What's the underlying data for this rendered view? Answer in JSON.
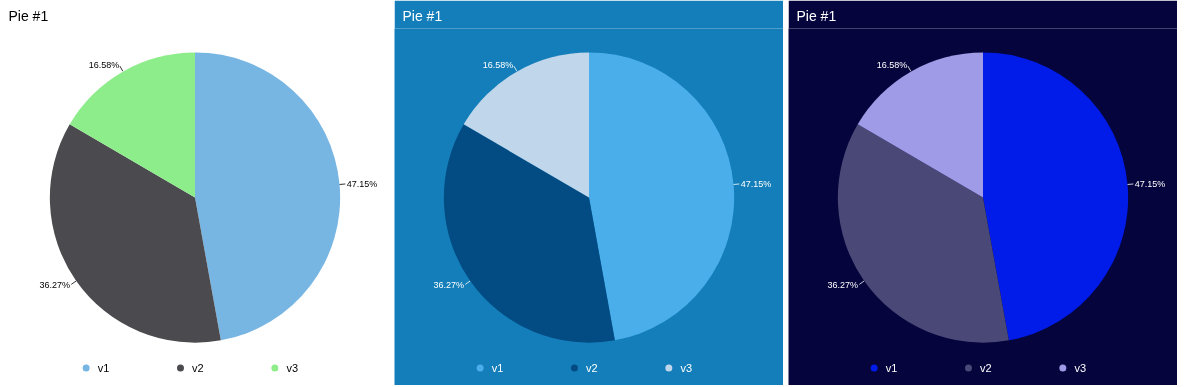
{
  "chart_data": [
    {
      "type": "pie",
      "title": "Pie #1",
      "categories": [
        "v1",
        "v2",
        "v3"
      ],
      "values": [
        47.15,
        36.27,
        16.58
      ],
      "colors": [
        "#77b5e3",
        "#4b4a4e",
        "#8ded8b"
      ],
      "value_labels": [
        "47.15%",
        "36.27%",
        "16.58%"
      ],
      "legend": "bottom"
    },
    {
      "type": "pie",
      "title": "Pie #1",
      "categories": [
        "v1",
        "v2",
        "v3"
      ],
      "values": [
        47.15,
        36.27,
        16.58
      ],
      "colors": [
        "#4aaeeb",
        "#034b83",
        "#c0d6ea"
      ],
      "value_labels": [
        "47.15%",
        "36.27%",
        "16.58%"
      ],
      "legend": "bottom"
    },
    {
      "type": "pie",
      "title": "Pie #1",
      "categories": [
        "v1",
        "v2",
        "v3"
      ],
      "values": [
        47.15,
        36.27,
        16.58
      ],
      "colors": [
        "#011be8",
        "#4a4876",
        "#a09be6"
      ],
      "value_labels": [
        "47.15%",
        "36.27%",
        "16.58%"
      ],
      "legend": "bottom"
    }
  ]
}
